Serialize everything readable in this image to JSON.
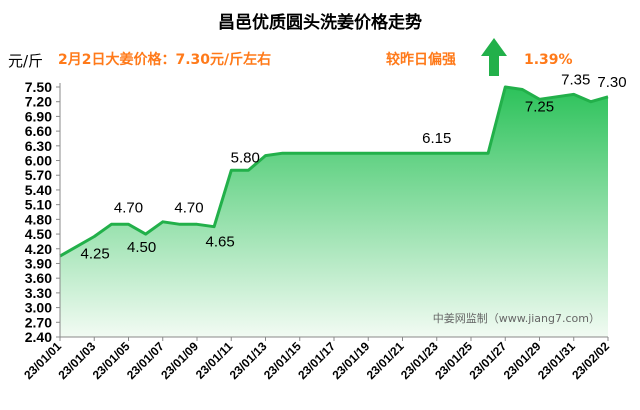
{
  "title": "昌邑优质圆头洗姜价格走势",
  "unit_label": "元/斤",
  "note_left": "2月2日大姜价格：7.30元/斤左右",
  "note_change_label": "较昨日偏强",
  "note_change_value": "1.39%",
  "watermark": "中姜网监制（www.jiang7.com）",
  "colors": {
    "line": "#22b04a",
    "fill_top": "#2cc25a",
    "fill_bottom": "#f2fbf3",
    "arrow": "#22b04a",
    "note": "#ff7a1a"
  },
  "chart_data": {
    "type": "area",
    "ylim": [
      2.4,
      7.5
    ],
    "yticks": [
      "2.40",
      "2.70",
      "3.00",
      "3.30",
      "3.60",
      "3.90",
      "4.20",
      "4.50",
      "4.80",
      "5.10",
      "5.40",
      "5.70",
      "6.00",
      "6.30",
      "6.60",
      "6.90",
      "7.20",
      "7.50"
    ],
    "x": [
      "23/01/01",
      "23/01/02",
      "23/01/03",
      "23/01/04",
      "23/01/05",
      "23/01/06",
      "23/01/07",
      "23/01/08",
      "23/01/09",
      "23/01/10",
      "23/01/11",
      "23/01/12",
      "23/01/13",
      "23/01/14",
      "23/01/15",
      "23/01/16",
      "23/01/17",
      "23/01/18",
      "23/01/19",
      "23/01/20",
      "23/01/21",
      "23/01/22",
      "23/01/23",
      "23/01/24",
      "23/01/25",
      "23/01/26",
      "23/01/27",
      "23/01/28",
      "23/01/29",
      "23/01/30",
      "23/01/31",
      "23/02/01",
      "23/02/02"
    ],
    "values": [
      4.05,
      4.25,
      4.45,
      4.7,
      4.7,
      4.5,
      4.75,
      4.7,
      4.7,
      4.65,
      5.8,
      5.8,
      6.1,
      6.15,
      6.15,
      6.15,
      6.15,
      6.15,
      6.15,
      6.15,
      6.15,
      6.15,
      6.15,
      6.15,
      6.15,
      6.15,
      7.5,
      7.45,
      7.25,
      7.3,
      7.35,
      7.2,
      7.3
    ],
    "xtick_labels": [
      "23/01/01",
      "23/01/03",
      "23/01/05",
      "23/01/07",
      "23/01/09",
      "23/01/11",
      "23/01/13",
      "23/01/15",
      "23/01/17",
      "23/01/19",
      "23/01/21",
      "23/01/23",
      "23/01/25",
      "23/01/27",
      "23/01/29",
      "23/01/31",
      "23/02/02"
    ],
    "data_labels": [
      {
        "i": 1,
        "text": "4.25"
      },
      {
        "i": 4,
        "text": "4.70"
      },
      {
        "i": 5,
        "text": "4.50"
      },
      {
        "i": 8,
        "text": "4.70"
      },
      {
        "i": 9,
        "text": "4.65"
      },
      {
        "i": 10,
        "text": "5.80"
      },
      {
        "i": 22,
        "text": "6.15"
      },
      {
        "i": 28,
        "text": "7.25"
      },
      {
        "i": 30,
        "text": "7.35"
      },
      {
        "i": 32,
        "text": "7.30"
      }
    ]
  }
}
